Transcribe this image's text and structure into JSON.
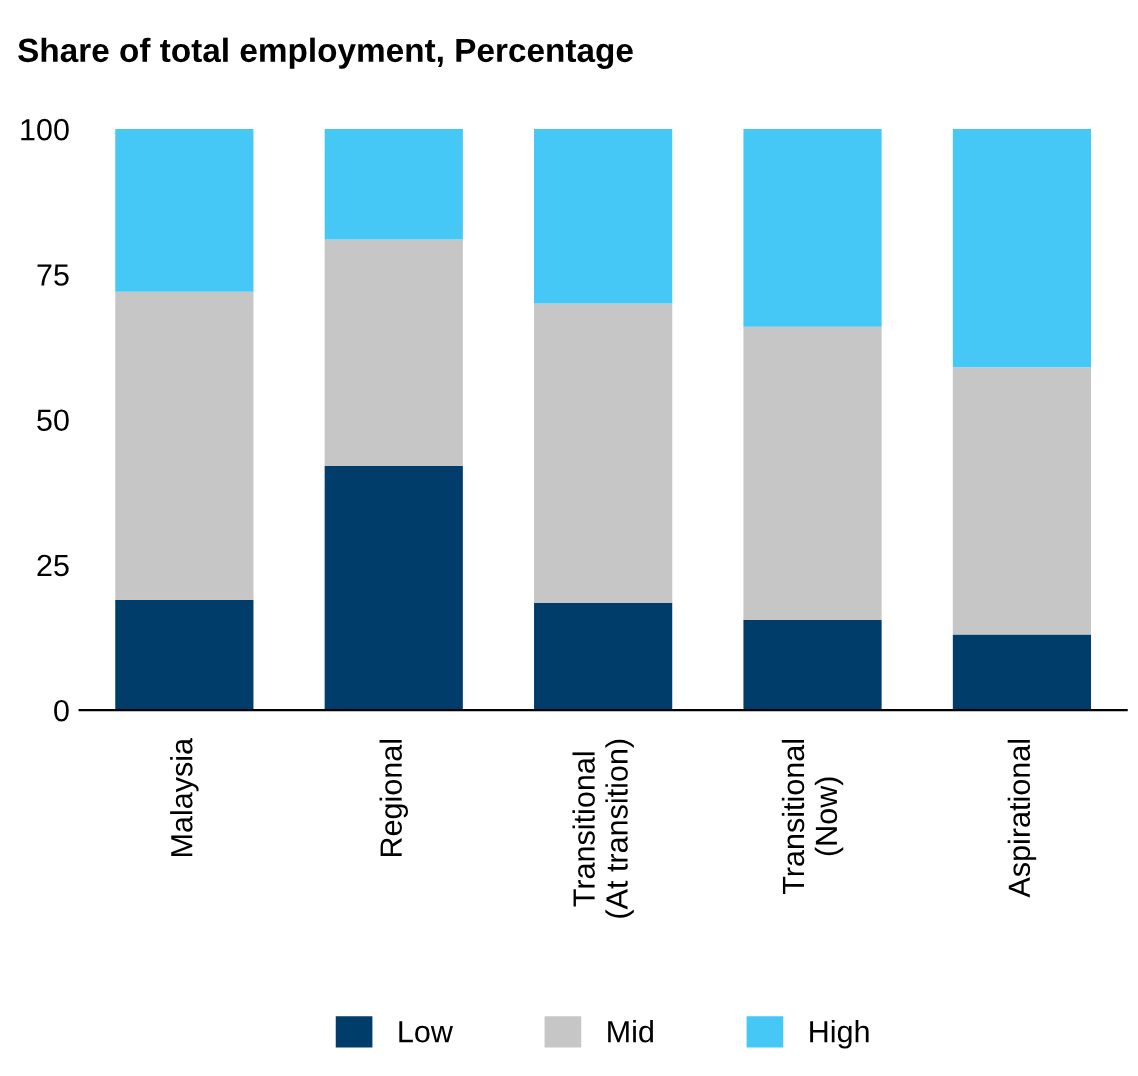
{
  "chart_data": {
    "type": "bar",
    "title": "Share of total employment, Percentage",
    "stacked": true,
    "categories": [
      "Malaysia",
      "Regional",
      "Transitional\n(At transition)",
      "Transitional\n(Now)",
      "Aspirational"
    ],
    "series": [
      {
        "name": "Low",
        "color": "#003d6b",
        "values": [
          19,
          42,
          18.5,
          15.5,
          13
        ]
      },
      {
        "name": "Mid",
        "color": "#c6c6c6",
        "values": [
          53,
          39,
          51.5,
          50.5,
          46
        ]
      },
      {
        "name": "High",
        "color": "#45c8f5",
        "values": [
          28,
          19,
          30,
          34,
          41
        ]
      }
    ],
    "ylim": [
      0,
      100
    ],
    "yticks": [
      0,
      25,
      50,
      75,
      100
    ],
    "grid": false,
    "legend": "bottom"
  }
}
